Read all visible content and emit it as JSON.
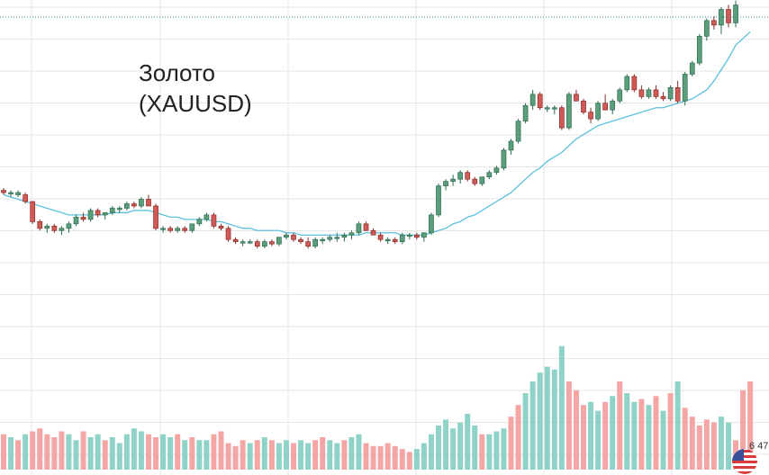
{
  "title": {
    "line1": "Золото",
    "line2": "(XAUUSD)"
  },
  "price_badge": "6 47",
  "icons": [
    "us-flag-icon"
  ],
  "colors": {
    "up": "#5a9e7c",
    "up_border": "#2f6b4f",
    "down": "#d05a55",
    "down_border": "#8a2c28",
    "ma": "#5bc0de",
    "volume_up": "#8fd3c8",
    "volume_down": "#f4a6a4",
    "grid": "#e6e6e6",
    "last_price_line": "#2a8a8a"
  },
  "chart_data": {
    "type": "candlestick",
    "title": "Золото (XAUUSD)",
    "xlabel": "",
    "ylabel": "",
    "grid": true,
    "price_range": [
      0,
      100
    ],
    "volume_range": [
      0,
      100
    ],
    "candles": [
      [
        63,
        64,
        61,
        62
      ],
      [
        62,
        63,
        60,
        62
      ],
      [
        61,
        63,
        60,
        62
      ],
      [
        61,
        62,
        57,
        58
      ],
      [
        58,
        58,
        48,
        49
      ],
      [
        49,
        50,
        45,
        46
      ],
      [
        46,
        48,
        44,
        47
      ],
      [
        47,
        48,
        44,
        45
      ],
      [
        45,
        47,
        43,
        46
      ],
      [
        46,
        49,
        44,
        48
      ],
      [
        48,
        52,
        47,
        51
      ],
      [
        51,
        53,
        49,
        50
      ],
      [
        50,
        55,
        49,
        54
      ],
      [
        54,
        55,
        51,
        52
      ],
      [
        52,
        53,
        50,
        53
      ],
      [
        53,
        56,
        52,
        55
      ],
      [
        55,
        56,
        53,
        55
      ],
      [
        55,
        58,
        54,
        57
      ],
      [
        57,
        58,
        55,
        56
      ],
      [
        56,
        60,
        55,
        59
      ],
      [
        59,
        61,
        56,
        56
      ],
      [
        56,
        57,
        45,
        46
      ],
      [
        46,
        47,
        44,
        46
      ],
      [
        46,
        47,
        44,
        45
      ],
      [
        45,
        47,
        44,
        46
      ],
      [
        46,
        47,
        44,
        45
      ],
      [
        45,
        48,
        44,
        48
      ],
      [
        48,
        51,
        47,
        50
      ],
      [
        50,
        53,
        49,
        52
      ],
      [
        52,
        53,
        46,
        47
      ],
      [
        47,
        48,
        45,
        46
      ],
      [
        46,
        47,
        40,
        41
      ],
      [
        41,
        42,
        39,
        40
      ],
      [
        40,
        41,
        38,
        40
      ],
      [
        40,
        41,
        39,
        40
      ],
      [
        40,
        41,
        37,
        38
      ],
      [
        38,
        41,
        37,
        40
      ],
      [
        40,
        41,
        38,
        39
      ],
      [
        39,
        42,
        38,
        42
      ],
      [
        42,
        44,
        41,
        43
      ],
      [
        43,
        44,
        40,
        41
      ],
      [
        41,
        42,
        39,
        40
      ],
      [
        40,
        42,
        37,
        38
      ],
      [
        38,
        42,
        37,
        41
      ],
      [
        41,
        42,
        39,
        41
      ],
      [
        41,
        43,
        40,
        42
      ],
      [
        42,
        44,
        40,
        42
      ],
      [
        42,
        44,
        40,
        43
      ],
      [
        43,
        45,
        41,
        44
      ],
      [
        44,
        49,
        43,
        48
      ],
      [
        48,
        49,
        45,
        45
      ],
      [
        45,
        46,
        43,
        43
      ],
      [
        43,
        44,
        40,
        41
      ],
      [
        41,
        42,
        39,
        41
      ],
      [
        41,
        42,
        39,
        40
      ],
      [
        40,
        44,
        39,
        43
      ],
      [
        43,
        44,
        41,
        43
      ],
      [
        43,
        44,
        41,
        42
      ],
      [
        42,
        44,
        40,
        44
      ],
      [
        44,
        53,
        43,
        52
      ],
      [
        52,
        66,
        51,
        65
      ],
      [
        65,
        68,
        63,
        67
      ],
      [
        67,
        70,
        65,
        68
      ],
      [
        68,
        72,
        66,
        71
      ],
      [
        71,
        72,
        67,
        68
      ],
      [
        68,
        69,
        65,
        66
      ],
      [
        66,
        69,
        65,
        69
      ],
      [
        69,
        72,
        68,
        71
      ],
      [
        71,
        74,
        70,
        73
      ],
      [
        73,
        82,
        72,
        81
      ],
      [
        81,
        86,
        79,
        85
      ],
      [
        85,
        95,
        84,
        94
      ],
      [
        94,
        102,
        93,
        101
      ],
      [
        101,
        108,
        99,
        106
      ],
      [
        106,
        107,
        99,
        100
      ],
      [
        100,
        101,
        98,
        100
      ],
      [
        100,
        101,
        97,
        100
      ],
      [
        100,
        101,
        90,
        91
      ],
      [
        91,
        107,
        90,
        106
      ],
      [
        106,
        108,
        103,
        103
      ],
      [
        103,
        104,
        97,
        98
      ],
      [
        98,
        100,
        93,
        95
      ],
      [
        95,
        103,
        94,
        102
      ],
      [
        102,
        106,
        99,
        99
      ],
      [
        99,
        104,
        97,
        103
      ],
      [
        103,
        109,
        102,
        108
      ],
      [
        108,
        115,
        107,
        114
      ],
      [
        114,
        115,
        107,
        108
      ],
      [
        108,
        110,
        104,
        105
      ],
      [
        105,
        109,
        104,
        108
      ],
      [
        108,
        110,
        104,
        105
      ],
      [
        105,
        107,
        103,
        104
      ],
      [
        104,
        110,
        103,
        109
      ],
      [
        109,
        112,
        102,
        103
      ],
      [
        103,
        116,
        101,
        115
      ],
      [
        115,
        121,
        114,
        120
      ],
      [
        120,
        133,
        119,
        132
      ],
      [
        132,
        140,
        130,
        139
      ],
      [
        139,
        141,
        135,
        137
      ],
      [
        137,
        145,
        133,
        144
      ],
      [
        144,
        146,
        136,
        138
      ],
      [
        138,
        148,
        136,
        146
      ]
    ],
    "moving_average": [
      61,
      60,
      59,
      58,
      57,
      56,
      55,
      54,
      53,
      52,
      52,
      52,
      52,
      52,
      52,
      53,
      53,
      53,
      54,
      54,
      54,
      53,
      52,
      51,
      51,
      50,
      50,
      50,
      50,
      49,
      49,
      48,
      47,
      46,
      46,
      45,
      45,
      45,
      45,
      44,
      44,
      43,
      43,
      43,
      43,
      43,
      43,
      43,
      43,
      43,
      44,
      44,
      44,
      44,
      44,
      43,
      43,
      43,
      43,
      44,
      45,
      46,
      48,
      49,
      51,
      52,
      54,
      56,
      58,
      60,
      62,
      65,
      68,
      71,
      73,
      76,
      78,
      80,
      83,
      86,
      88,
      90,
      92,
      93,
      94,
      95,
      96,
      97,
      98,
      99,
      100,
      100,
      101,
      102,
      103,
      104,
      106,
      108,
      112,
      117,
      122,
      128,
      131,
      134
    ],
    "volume": [
      [
        12,
        "down"
      ],
      [
        11,
        "up"
      ],
      [
        10,
        "down"
      ],
      [
        12,
        "up"
      ],
      [
        13,
        "down"
      ],
      [
        14,
        "down"
      ],
      [
        12,
        "down"
      ],
      [
        11,
        "down"
      ],
      [
        13,
        "down"
      ],
      [
        12,
        "up"
      ],
      [
        10,
        "up"
      ],
      [
        13,
        "down"
      ],
      [
        11,
        "up"
      ],
      [
        12,
        "up"
      ],
      [
        10,
        "down"
      ],
      [
        11,
        "up"
      ],
      [
        9,
        "up"
      ],
      [
        12,
        "up"
      ],
      [
        14,
        "up"
      ],
      [
        13,
        "up"
      ],
      [
        12,
        "down"
      ],
      [
        11,
        "down"
      ],
      [
        12,
        "up"
      ],
      [
        11,
        "up"
      ],
      [
        12,
        "down"
      ],
      [
        10,
        "up"
      ],
      [
        11,
        "down"
      ],
      [
        10,
        "up"
      ],
      [
        10,
        "up"
      ],
      [
        12,
        "down"
      ],
      [
        13,
        "down"
      ],
      [
        9,
        "down"
      ],
      [
        8,
        "down"
      ],
      [
        10,
        "down"
      ],
      [
        9,
        "up"
      ],
      [
        10,
        "down"
      ],
      [
        11,
        "up"
      ],
      [
        10,
        "down"
      ],
      [
        9,
        "up"
      ],
      [
        10,
        "up"
      ],
      [
        9,
        "down"
      ],
      [
        10,
        "up"
      ],
      [
        9,
        "up"
      ],
      [
        10,
        "down"
      ],
      [
        11,
        "down"
      ],
      [
        10,
        "up"
      ],
      [
        9,
        "up"
      ],
      [
        10,
        "down"
      ],
      [
        11,
        "up"
      ],
      [
        12,
        "up"
      ],
      [
        9,
        "down"
      ],
      [
        8,
        "down"
      ],
      [
        8,
        "down"
      ],
      [
        9,
        "down"
      ],
      [
        8,
        "down"
      ],
      [
        7,
        "down"
      ],
      [
        6,
        "down"
      ],
      [
        7,
        "up"
      ],
      [
        9,
        "up"
      ],
      [
        12,
        "up"
      ],
      [
        15,
        "up"
      ],
      [
        17,
        "up"
      ],
      [
        14,
        "up"
      ],
      [
        16,
        "up"
      ],
      [
        19,
        "up"
      ],
      [
        15,
        "up"
      ],
      [
        12,
        "down"
      ],
      [
        12,
        "up"
      ],
      [
        13,
        "up"
      ],
      [
        14,
        "up"
      ],
      [
        18,
        "down"
      ],
      [
        22,
        "down"
      ],
      [
        26,
        "up"
      ],
      [
        30,
        "up"
      ],
      [
        33,
        "up"
      ],
      [
        35,
        "up"
      ],
      [
        34,
        "up"
      ],
      [
        42,
        "up"
      ],
      [
        30,
        "down"
      ],
      [
        27,
        "down"
      ],
      [
        22,
        "down"
      ],
      [
        23,
        "up"
      ],
      [
        20,
        "up"
      ],
      [
        23,
        "down"
      ],
      [
        25,
        "up"
      ],
      [
        30,
        "down"
      ],
      [
        26,
        "up"
      ],
      [
        23,
        "up"
      ],
      [
        24,
        "down"
      ],
      [
        22,
        "up"
      ],
      [
        25,
        "down"
      ],
      [
        20,
        "up"
      ],
      [
        26,
        "down"
      ],
      [
        30,
        "up"
      ],
      [
        21,
        "down"
      ],
      [
        18,
        "down"
      ],
      [
        15,
        "down"
      ],
      [
        17,
        "down"
      ],
      [
        16,
        "down"
      ],
      [
        18,
        "up"
      ],
      [
        16,
        "up"
      ],
      [
        10,
        "down"
      ],
      [
        27,
        "down"
      ],
      [
        30,
        "down"
      ]
    ]
  }
}
